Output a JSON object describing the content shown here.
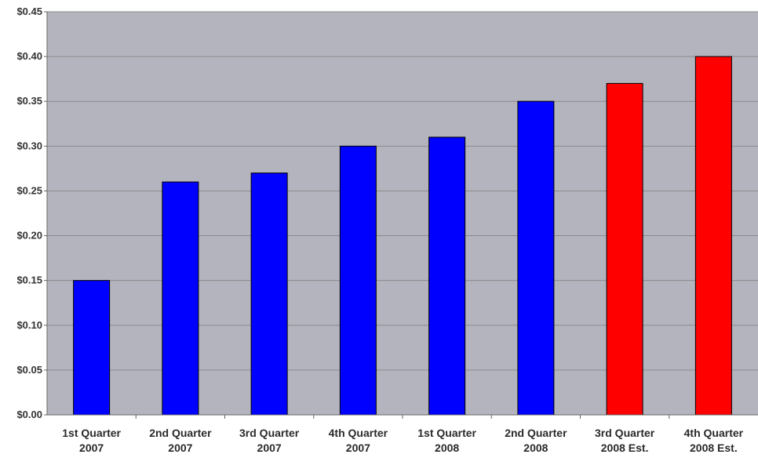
{
  "chart_data": {
    "type": "bar",
    "categories": [
      [
        "1st Quarter",
        "2007"
      ],
      [
        "2nd Quarter",
        "2007"
      ],
      [
        "3rd Quarter",
        "2007"
      ],
      [
        "4th Quarter",
        "2007"
      ],
      [
        "1st Quarter",
        "2008"
      ],
      [
        "2nd Quarter",
        "2008"
      ],
      [
        "3rd Quarter",
        "2008 Est."
      ],
      [
        "4th Quarter",
        "2008 Est."
      ]
    ],
    "values": [
      0.15,
      0.26,
      0.27,
      0.3,
      0.31,
      0.35,
      0.37,
      0.4
    ],
    "bar_colors": [
      "#0000ff",
      "#0000ff",
      "#0000ff",
      "#0000ff",
      "#0000ff",
      "#0000ff",
      "#ff0000",
      "#ff0000"
    ],
    "y_ticks": [
      "$0.00",
      "$0.05",
      "$0.10",
      "$0.15",
      "$0.20",
      "$0.25",
      "$0.30",
      "$0.35",
      "$0.40",
      "$0.45"
    ],
    "ylim": [
      0,
      0.45
    ],
    "grid": true,
    "plot_background": "#b4b4bf",
    "title": "",
    "xlabel": "",
    "ylabel": ""
  }
}
